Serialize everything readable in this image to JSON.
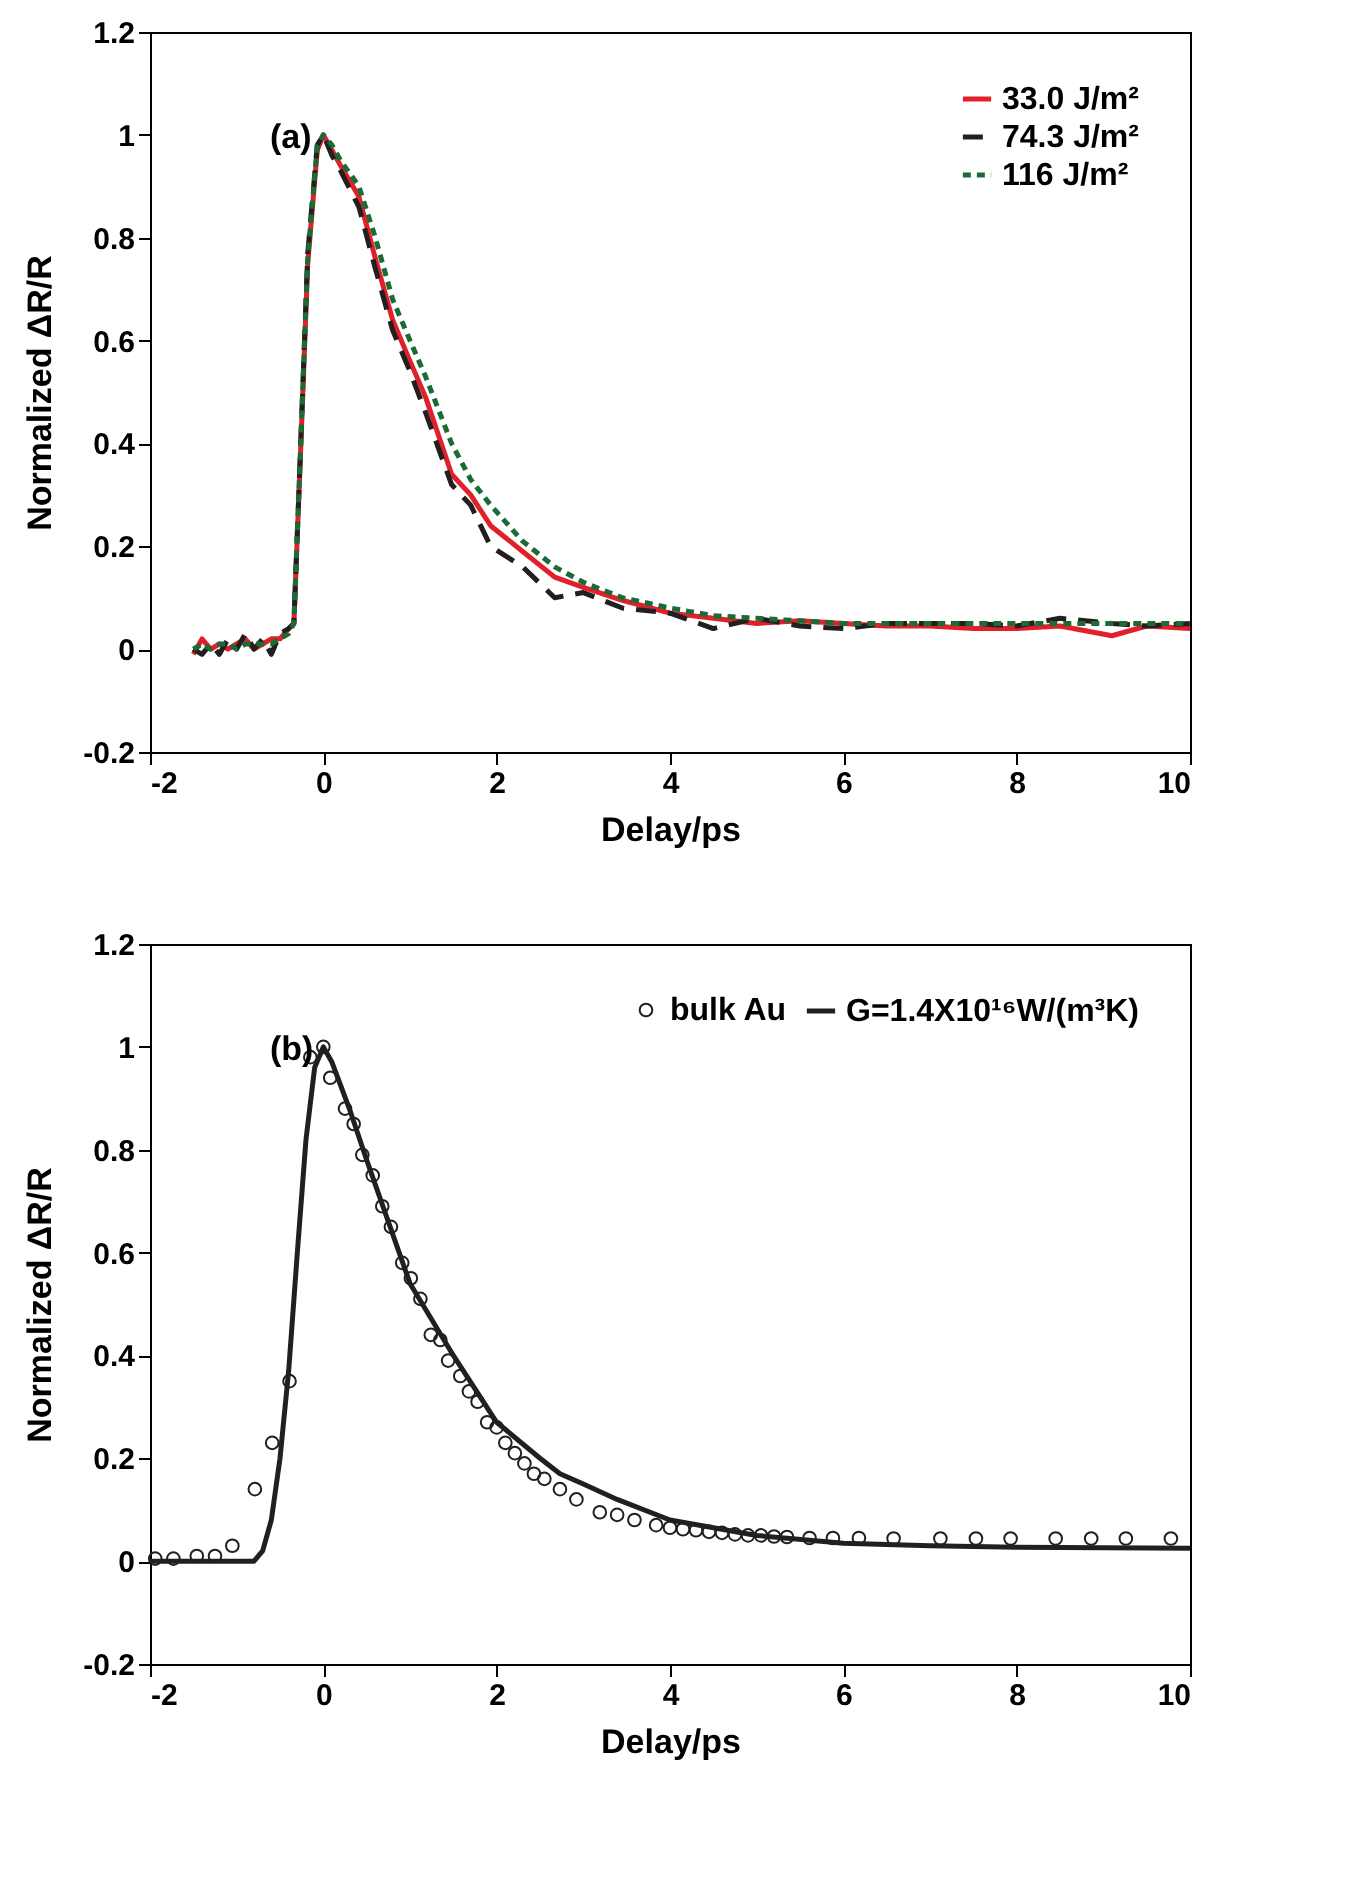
{
  "chart_data": [
    {
      "type": "line",
      "xlabel": "Delay/ps",
      "ylabel": "Normalized ΔR/R",
      "annotations": [
        "(a)"
      ],
      "xlim": [
        -2,
        10
      ],
      "xticks": [
        -2,
        0,
        2,
        4,
        6,
        8,
        10
      ],
      "ylim": [
        -0.2,
        1.2
      ],
      "yticks": [
        -0.2,
        0,
        0.2,
        0.4,
        0.6,
        0.8,
        1,
        1.2
      ],
      "legend": "top right",
      "grid": false,
      "x": [
        -1.5,
        -1.4,
        -1.3,
        -1.2,
        -1.1,
        -1,
        -0.9,
        -0.8,
        -0.7,
        -0.6,
        -0.5,
        -0.4,
        -0.34,
        -0.27,
        -0.18,
        -0.07,
        0,
        0.1,
        0.2,
        0.41,
        0.6,
        0.8,
        1.0,
        1.18,
        1.48,
        1.7,
        1.93,
        2.3,
        2.67,
        3.0,
        3.45,
        4.0,
        4.5,
        5,
        5.5,
        6,
        6.5,
        7,
        7.5,
        8,
        8.5,
        9.1,
        9.5,
        10
      ],
      "series": [
        {
          "name": "33.0 J/m²",
          "color": "#e0202a",
          "line_style": "solid",
          "values": [
            -0.01,
            0.02,
            0,
            0.01,
            0,
            0.01,
            0.02,
            0,
            0.01,
            0.02,
            0.02,
            0.04,
            0.05,
            0.35,
            0.75,
            0.97,
            1.0,
            0.97,
            0.94,
            0.88,
            0.76,
            0.64,
            0.56,
            0.49,
            0.34,
            0.3,
            0.24,
            0.19,
            0.14,
            0.12,
            0.095,
            0.07,
            0.06,
            0.05,
            0.055,
            0.05,
            0.045,
            0.045,
            0.04,
            0.04,
            0.045,
            0.026,
            0.045,
            0.04
          ]
        },
        {
          "name": "74.3 J/m²",
          "color": "#231f20",
          "line_style": "dashed",
          "values": [
            0,
            -0.01,
            0.01,
            -0.01,
            0.02,
            0,
            0.03,
            0,
            0.02,
            -0.01,
            0.03,
            0.04,
            0.05,
            0.36,
            0.77,
            0.98,
            1.0,
            0.96,
            0.93,
            0.86,
            0.74,
            0.62,
            0.54,
            0.46,
            0.32,
            0.28,
            0.2,
            0.16,
            0.1,
            0.11,
            0.08,
            0.07,
            0.04,
            0.06,
            0.045,
            0.04,
            0.05,
            0.05,
            0.05,
            0.045,
            0.06,
            0.05,
            0.045,
            0.05
          ]
        },
        {
          "name": "116 J/m²",
          "color": "#1a6b35",
          "line_style": "dotted",
          "values": [
            0,
            0.01,
            0,
            0.01,
            0.01,
            0,
            0.01,
            0.01,
            0.01,
            0.01,
            0.02,
            0.03,
            0.05,
            0.36,
            0.76,
            0.98,
            1.0,
            0.98,
            0.95,
            0.9,
            0.8,
            0.68,
            0.6,
            0.53,
            0.4,
            0.33,
            0.28,
            0.21,
            0.16,
            0.13,
            0.1,
            0.08,
            0.065,
            0.06,
            0.055,
            0.05,
            0.05,
            0.05,
            0.05,
            0.05,
            0.05,
            0.05,
            0.05,
            0.05
          ]
        }
      ]
    },
    {
      "type": "line",
      "xlabel": "Delay/ps",
      "ylabel": "Normalized ΔR/R",
      "annotations": [
        "(b)"
      ],
      "xlim": [
        -2,
        10
      ],
      "xticks": [
        -2,
        0,
        2,
        4,
        6,
        8,
        10
      ],
      "ylim": [
        -0.2,
        1.2
      ],
      "yticks": [
        -0.2,
        0,
        0.2,
        0.4,
        0.6,
        0.8,
        1,
        1.2
      ],
      "legend": "top right",
      "grid": false,
      "series": [
        {
          "name": "bulk Au",
          "type": "scatter",
          "marker": "circle",
          "color": "#231f20",
          "x": [
            -1.94,
            -1.73,
            -1.46,
            -1.25,
            -1.05,
            -0.79,
            -0.59,
            -0.39,
            -0.15,
            0,
            0.08,
            0.25,
            0.35,
            0.45,
            0.57,
            0.68,
            0.78,
            0.91,
            1.01,
            1.12,
            1.24,
            1.35,
            1.44,
            1.58,
            1.68,
            1.78,
            1.89,
            2.0,
            2.1,
            2.21,
            2.32,
            2.43,
            2.55,
            2.73,
            2.92,
            3.19,
            3.39,
            3.59,
            3.84,
            4.0,
            4.15,
            4.3,
            4.45,
            4.6,
            4.75,
            4.9,
            5.05,
            5.2,
            5.35,
            5.61,
            5.88,
            6.18,
            6.58,
            7.12,
            7.53,
            7.93,
            8.45,
            8.86,
            9.26,
            9.78
          ],
          "values": [
            0.005,
            0.005,
            0.01,
            0.01,
            0.03,
            0.14,
            0.23,
            0.35,
            0.98,
            1.0,
            0.94,
            0.88,
            0.85,
            0.79,
            0.75,
            0.69,
            0.65,
            0.58,
            0.55,
            0.51,
            0.44,
            0.43,
            0.39,
            0.36,
            0.33,
            0.31,
            0.27,
            0.26,
            0.23,
            0.21,
            0.19,
            0.17,
            0.16,
            0.14,
            0.12,
            0.095,
            0.09,
            0.08,
            0.07,
            0.065,
            0.062,
            0.06,
            0.057,
            0.055,
            0.052,
            0.05,
            0.05,
            0.048,
            0.047,
            0.045,
            0.045,
            0.045,
            0.044,
            0.044,
            0.044,
            0.044,
            0.044,
            0.044,
            0.044,
            0.044
          ]
        },
        {
          "name": "G=1.4X10¹⁶W/(m³K)",
          "line_style": "solid",
          "color": "#231f20",
          "x": [
            -2,
            -1,
            -0.8,
            -0.7,
            -0.6,
            -0.5,
            -0.4,
            -0.3,
            -0.2,
            -0.1,
            0,
            0.1,
            0.3,
            0.5,
            1.0,
            1.5,
            2,
            2.5,
            2.73,
            3,
            3.39,
            4,
            5,
            6,
            7,
            8,
            10
          ],
          "values": [
            0,
            0,
            0,
            0.02,
            0.08,
            0.2,
            0.37,
            0.6,
            0.82,
            0.96,
            1.0,
            0.97,
            0.88,
            0.78,
            0.54,
            0.4,
            0.27,
            0.2,
            0.17,
            0.15,
            0.12,
            0.08,
            0.05,
            0.035,
            0.03,
            0.027,
            0.025
          ]
        }
      ]
    }
  ]
}
